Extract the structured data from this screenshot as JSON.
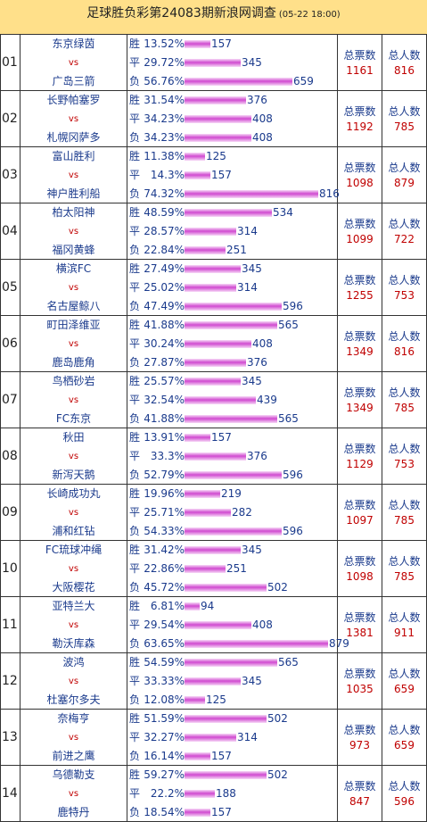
{
  "title": {
    "main": "足球胜负彩第24083期新浪网调查",
    "date": "(05-22 18:00)"
  },
  "labels": {
    "vs": "vs",
    "win": "胜",
    "draw": "平",
    "lose": "负",
    "total_votes": "总票数",
    "total_people": "总人数"
  },
  "matches": [
    {
      "no": "01",
      "home": "东京绿茵",
      "away": "广岛三箭",
      "win": {
        "pct": "13.52%",
        "count": 157
      },
      "draw": {
        "pct": "29.72%",
        "count": 345
      },
      "lose": {
        "pct": "56.76%",
        "count": 659
      },
      "votes": "1161",
      "people": "816"
    },
    {
      "no": "02",
      "home": "长野帕塞罗",
      "away": "札幌冈萨多",
      "win": {
        "pct": "31.54%",
        "count": 376
      },
      "draw": {
        "pct": "34.23%",
        "count": 408
      },
      "lose": {
        "pct": "34.23%",
        "count": 408
      },
      "votes": "1192",
      "people": "785"
    },
    {
      "no": "03",
      "home": "富山胜利",
      "away": "神户胜利船",
      "win": {
        "pct": "11.38%",
        "count": 125
      },
      "draw": {
        "pct": "14.3%",
        "count": 157
      },
      "lose": {
        "pct": "74.32%",
        "count": 816
      },
      "votes": "1098",
      "people": "879"
    },
    {
      "no": "04",
      "home": "柏太阳神",
      "away": "福冈黄蜂",
      "win": {
        "pct": "48.59%",
        "count": 534
      },
      "draw": {
        "pct": "28.57%",
        "count": 314
      },
      "lose": {
        "pct": "22.84%",
        "count": 251
      },
      "votes": "1099",
      "people": "722"
    },
    {
      "no": "05",
      "home": "横滨FC",
      "away": "名古屋鲸八",
      "win": {
        "pct": "27.49%",
        "count": 345
      },
      "draw": {
        "pct": "25.02%",
        "count": 314
      },
      "lose": {
        "pct": "47.49%",
        "count": 596
      },
      "votes": "1255",
      "people": "753"
    },
    {
      "no": "06",
      "home": "町田泽维亚",
      "away": "鹿岛鹿角",
      "win": {
        "pct": "41.88%",
        "count": 565
      },
      "draw": {
        "pct": "30.24%",
        "count": 408
      },
      "lose": {
        "pct": "27.87%",
        "count": 376
      },
      "votes": "1349",
      "people": "816"
    },
    {
      "no": "07",
      "home": "鸟栖砂岩",
      "away": "FC东京",
      "win": {
        "pct": "25.57%",
        "count": 345
      },
      "draw": {
        "pct": "32.54%",
        "count": 439
      },
      "lose": {
        "pct": "41.88%",
        "count": 565
      },
      "votes": "1349",
      "people": "785"
    },
    {
      "no": "08",
      "home": "秋田",
      "away": "新泻天鹅",
      "win": {
        "pct": "13.91%",
        "count": 157
      },
      "draw": {
        "pct": "33.3%",
        "count": 376
      },
      "lose": {
        "pct": "52.79%",
        "count": 596
      },
      "votes": "1129",
      "people": "753"
    },
    {
      "no": "09",
      "home": "长崎成功丸",
      "away": "浦和红钻",
      "win": {
        "pct": "19.96%",
        "count": 219
      },
      "draw": {
        "pct": "25.71%",
        "count": 282
      },
      "lose": {
        "pct": "54.33%",
        "count": 596
      },
      "votes": "1097",
      "people": "785"
    },
    {
      "no": "10",
      "home": "FC琉球冲绳",
      "away": "大阪樱花",
      "win": {
        "pct": "31.42%",
        "count": 345
      },
      "draw": {
        "pct": "22.86%",
        "count": 251
      },
      "lose": {
        "pct": "45.72%",
        "count": 502
      },
      "votes": "1098",
      "people": "785"
    },
    {
      "no": "11",
      "home": "亚特兰大",
      "away": "勒沃库森",
      "win": {
        "pct": "6.81%",
        "count": 94
      },
      "draw": {
        "pct": "29.54%",
        "count": 408
      },
      "lose": {
        "pct": "63.65%",
        "count": 879
      },
      "votes": "1381",
      "people": "911"
    },
    {
      "no": "12",
      "home": "波鸿",
      "away": "杜塞尔多夫",
      "win": {
        "pct": "54.59%",
        "count": 565
      },
      "draw": {
        "pct": "33.33%",
        "count": 345
      },
      "lose": {
        "pct": "12.08%",
        "count": 125
      },
      "votes": "1035",
      "people": "659"
    },
    {
      "no": "13",
      "home": "奈梅亨",
      "away": "前进之鹰",
      "win": {
        "pct": "51.59%",
        "count": 502
      },
      "draw": {
        "pct": "32.27%",
        "count": 314
      },
      "lose": {
        "pct": "16.14%",
        "count": 157
      },
      "votes": "973",
      "people": "659"
    },
    {
      "no": "14",
      "home": "乌德勒支",
      "away": "鹿特丹",
      "win": {
        "pct": "59.27%",
        "count": 502
      },
      "draw": {
        "pct": "22.2%",
        "count": 188
      },
      "lose": {
        "pct": "18.54%",
        "count": 157
      },
      "votes": "847",
      "people": "596"
    }
  ],
  "colors": {
    "header_bg": "#ffe08a",
    "team_text": "#1a3a8c",
    "value_text": "#c00000",
    "bar": "#d04ad0"
  }
}
